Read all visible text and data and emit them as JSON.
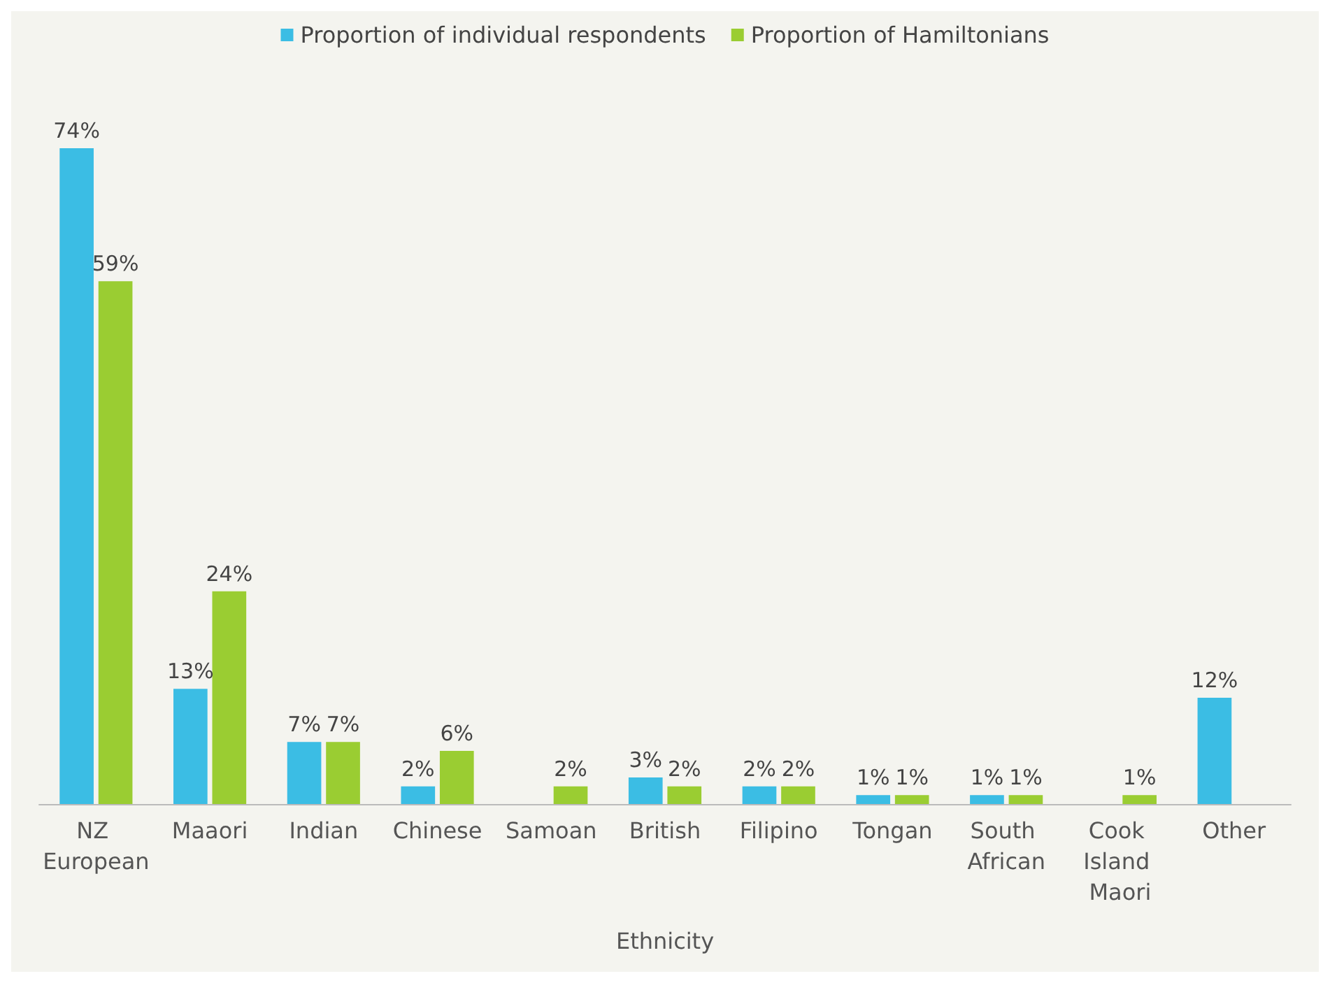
{
  "chart_data": {
    "type": "bar",
    "xlabel": "Ethnicity",
    "categories": [
      "NZ European",
      "Maaori",
      "Indian",
      "Chinese",
      "Samoan",
      "British",
      "Filipino",
      "Tongan",
      "South African",
      "Cook Island Maori",
      "Other"
    ],
    "series": [
      {
        "name": "Proportion of individual respondents",
        "color": "#3bbde4",
        "values": [
          74,
          13,
          7,
          2,
          null,
          3,
          2,
          1,
          1,
          null,
          12
        ],
        "value_labels": [
          "74%",
          "13%",
          "7%",
          "2%",
          null,
          "3%",
          "2%",
          "1%",
          "1%",
          null,
          "12%"
        ]
      },
      {
        "name": "Proportion of Hamiltonians",
        "color": "#9acd32",
        "values": [
          59,
          24,
          7,
          6,
          2,
          2,
          2,
          1,
          1,
          1,
          null
        ],
        "value_labels": [
          "59%",
          "24%",
          "7%",
          "6%",
          "2%",
          "2%",
          "2%",
          "1%",
          "1%",
          "1%",
          null
        ]
      }
    ],
    "legend": "top"
  }
}
